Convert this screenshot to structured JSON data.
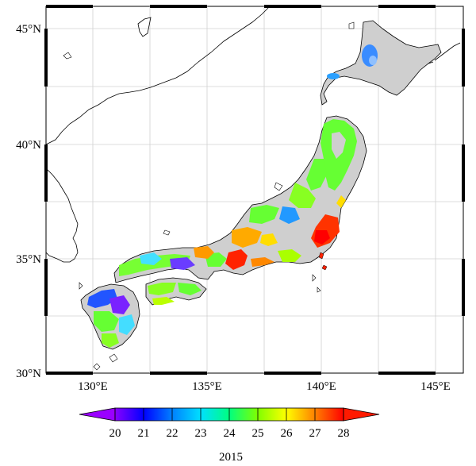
{
  "map": {
    "lat_labels": [
      "45°N",
      "40°N",
      "35°N",
      "30°N"
    ],
    "lon_labels": [
      "130°E",
      "135°E",
      "140°E",
      "145°E"
    ],
    "extent": {
      "lon": [
        128,
        146
      ],
      "lat": [
        30,
        46
      ]
    },
    "land_fill": "#cfcfcf",
    "grid_color": "#c8c8c8"
  },
  "colorbar": {
    "ticks": [
      "20",
      "21",
      "22",
      "23",
      "24",
      "25",
      "26",
      "27",
      "28"
    ],
    "min": 20,
    "max": 28,
    "colors": [
      "#8a00ff",
      "#0000ff",
      "#0080ff",
      "#00e0ff",
      "#00ff80",
      "#80ff00",
      "#ffff00",
      "#ff8000",
      "#ff0000"
    ],
    "low_extend_color": "#9a00ff",
    "high_extend_color": "#ff1a00"
  },
  "caption": "2015"
}
